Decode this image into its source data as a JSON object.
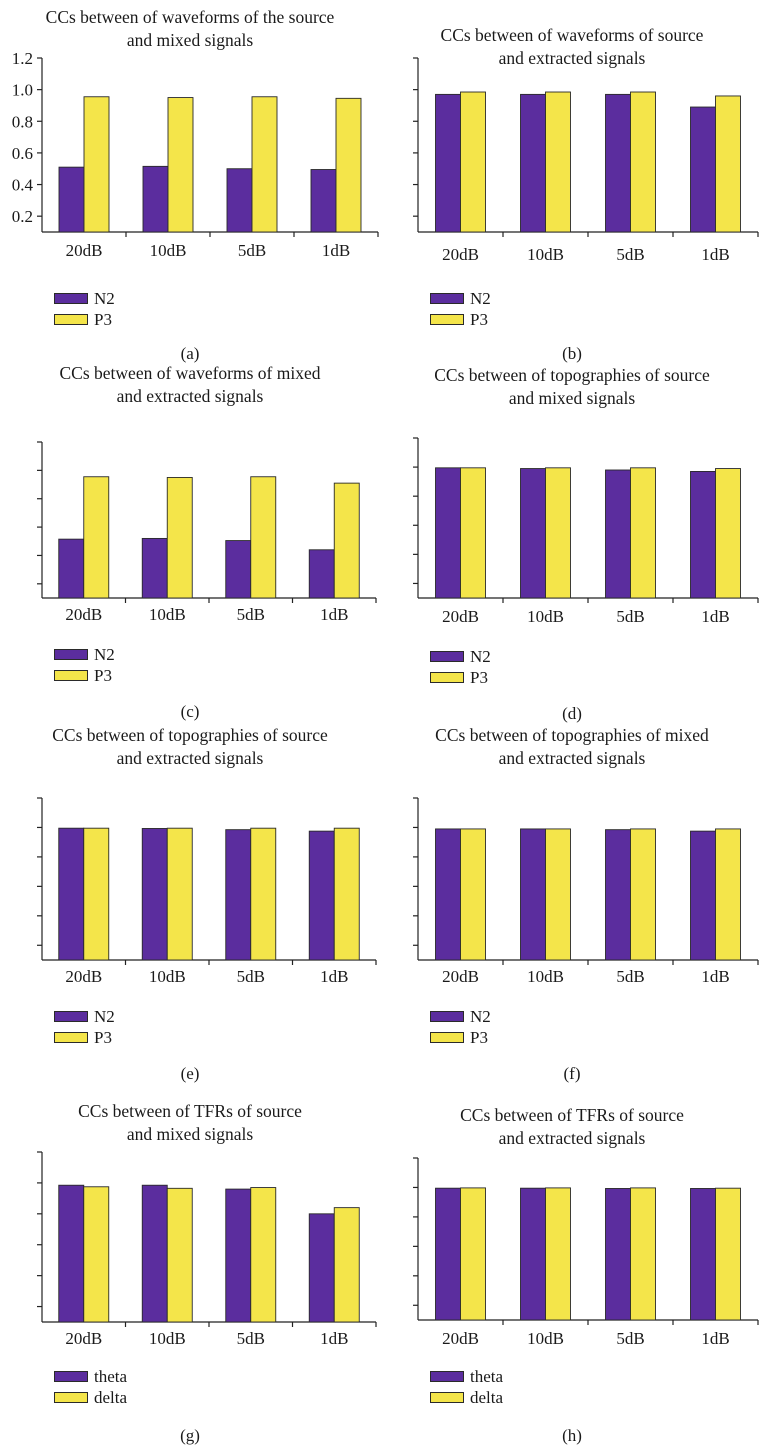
{
  "colors": {
    "series1": "#5b2d9e",
    "series2": "#f4e54a",
    "axis": "#222222"
  },
  "chart_data": [
    {
      "type": "bar",
      "panel": "(a)",
      "title": [
        "CCs between of waveforms of the source",
        "and mixed signals"
      ],
      "categories": [
        "20dB",
        "10dB",
        "5dB",
        "1dB"
      ],
      "series": [
        {
          "name": "N2",
          "values": [
            0.51,
            0.515,
            0.5,
            0.495
          ]
        },
        {
          "name": "P3",
          "values": [
            0.955,
            0.95,
            0.955,
            0.945
          ]
        }
      ],
      "ylim": [
        0.1,
        1.2
      ],
      "yticks": [
        "0.2",
        "0.4",
        "0.6",
        "0.8",
        "1.0",
        "1.2"
      ],
      "ytick_values": [
        0.2,
        0.4,
        0.6,
        0.8,
        1.0,
        1.2
      ]
    },
    {
      "type": "bar",
      "panel": "(b)",
      "title": [
        "CCs between of waveforms of source",
        "and extracted signals"
      ],
      "categories": [
        "20dB",
        "10dB",
        "5dB",
        "1dB"
      ],
      "series": [
        {
          "name": "N2",
          "values": [
            0.97,
            0.97,
            0.97,
            0.89
          ]
        },
        {
          "name": "P3",
          "values": [
            0.985,
            0.985,
            0.985,
            0.96
          ]
        }
      ],
      "ylim": [
        0.1,
        1.2
      ],
      "yticks": [],
      "ytick_values": [
        0.2,
        0.4,
        0.6,
        0.8,
        1.0,
        1.2
      ]
    },
    {
      "type": "bar",
      "panel": "(c)",
      "title": [
        "CCs between of waveforms of mixed",
        "and extracted signals"
      ],
      "categories": [
        "20dB",
        "10dB",
        "5dB",
        "1dB"
      ],
      "series": [
        {
          "name": "N2",
          "values": [
            0.515,
            0.52,
            0.505,
            0.44
          ]
        },
        {
          "name": "P3",
          "values": [
            0.955,
            0.95,
            0.955,
            0.91
          ]
        }
      ],
      "ylim": [
        0.1,
        1.2
      ],
      "yticks": [],
      "ytick_values": [
        0.2,
        0.4,
        0.6,
        0.8,
        1.0,
        1.2
      ]
    },
    {
      "type": "bar",
      "panel": "(d)",
      "title": [
        "CCs between of topographies of source",
        "and mixed signals"
      ],
      "categories": [
        "20dB",
        "10dB",
        "5dB",
        "1dB"
      ],
      "series": [
        {
          "name": "N2",
          "values": [
            0.995,
            0.99,
            0.98,
            0.97
          ]
        },
        {
          "name": "P3",
          "values": [
            0.995,
            0.995,
            0.995,
            0.99
          ]
        }
      ],
      "ylim": [
        0.1,
        1.2
      ],
      "yticks": [],
      "ytick_values": [
        0.2,
        0.4,
        0.6,
        0.8,
        1.0,
        1.2
      ]
    },
    {
      "type": "bar",
      "panel": "(e)",
      "title": [
        "CCs between of topographies of source",
        "and extracted signals"
      ],
      "categories": [
        "20dB",
        "10dB",
        "5dB",
        "1dB"
      ],
      "series": [
        {
          "name": "N2",
          "values": [
            0.995,
            0.993,
            0.985,
            0.975
          ]
        },
        {
          "name": "P3",
          "values": [
            0.995,
            0.995,
            0.995,
            0.995
          ]
        }
      ],
      "ylim": [
        0.1,
        1.2
      ],
      "yticks": [],
      "ytick_values": [
        0.2,
        0.4,
        0.6,
        0.8,
        1.0,
        1.2
      ]
    },
    {
      "type": "bar",
      "panel": "(f)",
      "title": [
        "CCs between of topographies of mixed",
        "and extracted signals"
      ],
      "categories": [
        "20dB",
        "10dB",
        "5dB",
        "1dB"
      ],
      "series": [
        {
          "name": "N2",
          "values": [
            0.99,
            0.99,
            0.985,
            0.975
          ]
        },
        {
          "name": "P3",
          "values": [
            0.99,
            0.99,
            0.99,
            0.99
          ]
        }
      ],
      "ylim": [
        0.1,
        1.2
      ],
      "yticks": [],
      "ytick_values": [
        0.2,
        0.4,
        0.6,
        0.8,
        1.0,
        1.2
      ]
    },
    {
      "type": "bar",
      "panel": "(g)",
      "title": [
        "CCs between of TFRs of source",
        "and mixed signals"
      ],
      "categories": [
        "20dB",
        "10dB",
        "5dB",
        "1dB"
      ],
      "series": [
        {
          "name": "theta",
          "values": [
            0.985,
            0.985,
            0.96,
            0.8
          ]
        },
        {
          "name": "delta",
          "values": [
            0.975,
            0.965,
            0.97,
            0.84
          ]
        }
      ],
      "ylim": [
        0.1,
        1.2
      ],
      "yticks": [],
      "ytick_values": [
        0.2,
        0.4,
        0.6,
        0.8,
        1.0,
        1.2
      ]
    },
    {
      "type": "bar",
      "panel": "(h)",
      "title": [
        "CCs between of TFRs of source",
        "and extracted signals"
      ],
      "categories": [
        "20dB",
        "10dB",
        "5dB",
        "1dB"
      ],
      "series": [
        {
          "name": "theta",
          "values": [
            0.995,
            0.995,
            0.993,
            0.993
          ]
        },
        {
          "name": "delta",
          "values": [
            0.997,
            0.997,
            0.997,
            0.995
          ]
        }
      ],
      "ylim": [
        0.1,
        1.2
      ],
      "yticks": [],
      "ytick_values": [
        0.2,
        0.4,
        0.6,
        0.8,
        1.0,
        1.2
      ]
    }
  ]
}
